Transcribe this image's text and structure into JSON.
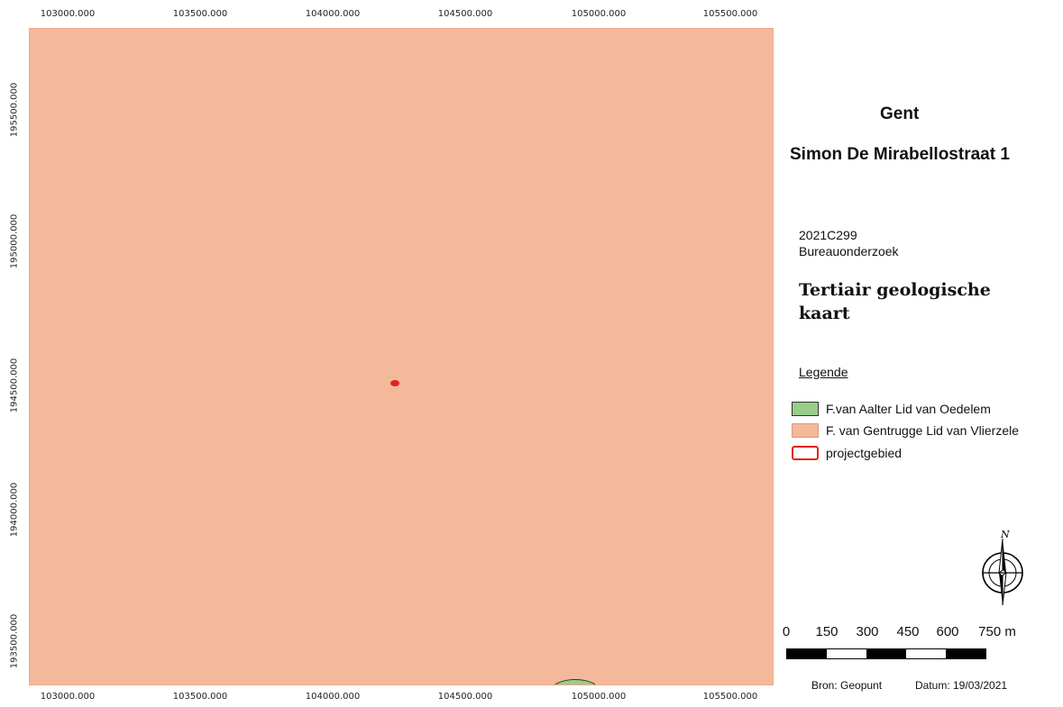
{
  "map": {
    "x_ticks": [
      "103000.000",
      "103500.000",
      "104000.000",
      "104500.000",
      "105000.000",
      "105500.000"
    ],
    "y_ticks": [
      "195500.000",
      "195000.000",
      "194500.000",
      "194000.000",
      "193500.000"
    ],
    "background_color": "#f4b89b",
    "project_color": "#e0231c",
    "aalter_color": "#98cd8a"
  },
  "header": {
    "city": "Gent",
    "street": "Simon De Mirabellostraat 1"
  },
  "project": {
    "code": "2021C299",
    "type": "Bureauonderzoek"
  },
  "map_title": "Tertiair geologische kaart",
  "legend": {
    "title": "Legende",
    "items": [
      {
        "label": "F.van Aalter Lid van Oedelem",
        "fill": "#98cd8a",
        "border": "#333333"
      },
      {
        "label": "F. van Gentrugge Lid van Vlierzele",
        "fill": "#f4b89b",
        "border": "#d49c80"
      },
      {
        "label": "projectgebied",
        "fill": "#ffffff",
        "border": "#e0231c"
      }
    ]
  },
  "north_arrow": {
    "label": "N"
  },
  "scale": {
    "labels": [
      "0",
      "150",
      "300",
      "450",
      "600",
      "750 m"
    ]
  },
  "footer": {
    "source": "Bron: Geopunt",
    "date": "Datum: 19/03/2021"
  }
}
